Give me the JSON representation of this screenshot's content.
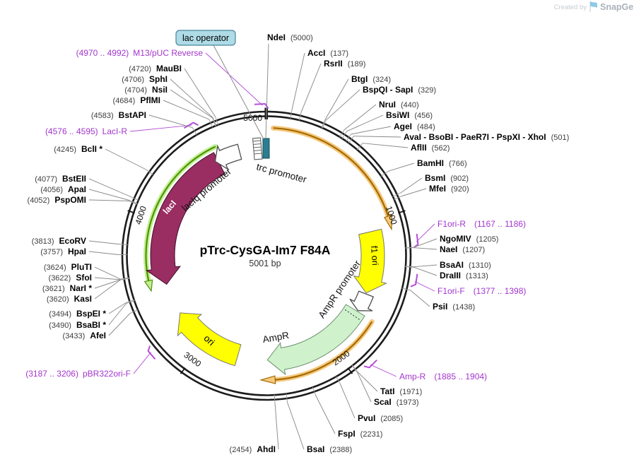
{
  "brand": {
    "created_by": "Created by",
    "name": "SnapGene"
  },
  "plasmid": {
    "title": "pTrc-CysGA-Im7 F84A",
    "size": "5001 bp"
  },
  "ticks": [
    "1000",
    "2000",
    "3000",
    "4000",
    "5000"
  ],
  "colors": {
    "primer_purple": "#a335cc",
    "callout_gray": "#8a8a8a",
    "lacI_maroon": "#9a2d62",
    "yellow": "#ffff00",
    "ampr_green": "#cff2cd",
    "orf_orange_glow": "#f6c97e",
    "orf_orange_core": "#a36a00",
    "orf_green_glow": "#c3ef92",
    "orf_green_core": "#4c9406",
    "operator_teal": "#2c7d90",
    "lac_operator_box": "#aedbe6"
  },
  "features": {
    "trc_promoter": "trc promoter",
    "lac_operator": "lac operator",
    "lacI": "lacI",
    "laciq_promoter": "lacIq promoter",
    "f1_ori": "f1 ori",
    "ampr_promoter": "AmpR promoter",
    "ampr": "AmpR",
    "ori": "ori"
  },
  "sites": [
    {
      "name": "NdeI",
      "pos": "(5000)"
    },
    {
      "name": "AccI",
      "pos": "(137)"
    },
    {
      "name": "RsrII",
      "pos": "(189)"
    },
    {
      "name": "BtgI",
      "pos": "(324)"
    },
    {
      "name": "BspQI - SapI",
      "pos": "(329)"
    },
    {
      "name": "NruI",
      "pos": "(440)"
    },
    {
      "name": "BsiWI",
      "pos": "(456)"
    },
    {
      "name": "AgeI",
      "pos": "(484)"
    },
    {
      "name": "AvaI - BsoBI - PaeR7I - PspXI - XhoI",
      "pos": "(501)"
    },
    {
      "name": "AflII",
      "pos": "(562)"
    },
    {
      "name": "BamHI",
      "pos": "(766)"
    },
    {
      "name": "BsmI",
      "pos": "(902)"
    },
    {
      "name": "MfeI",
      "pos": "(920)"
    },
    {
      "name": "F1ori-R",
      "pos": "(1167 .. 1186)",
      "primer": true
    },
    {
      "name": "NgoMIV",
      "pos": "(1205)"
    },
    {
      "name": "NaeI",
      "pos": "(1207)"
    },
    {
      "name": "BsaAI",
      "pos": "(1310)"
    },
    {
      "name": "DraIII",
      "pos": "(1313)"
    },
    {
      "name": "F1ori-F",
      "pos": "(1377 .. 1398)",
      "primer": true
    },
    {
      "name": "PsiI",
      "pos": "(1438)"
    },
    {
      "name": "Amp-R",
      "pos": "(1885 .. 1904)",
      "primer": true
    },
    {
      "name": "TatI",
      "pos": "(1971)"
    },
    {
      "name": "ScaI",
      "pos": "(1973)"
    },
    {
      "name": "PvuI",
      "pos": "(2085)"
    },
    {
      "name": "FspI",
      "pos": "(2231)"
    },
    {
      "name": "BsaI",
      "pos": "(2388)"
    },
    {
      "name": "AhdI",
      "pos": "(2454)"
    },
    {
      "name": "pBR322ori-F",
      "pos": "(3187 .. 3206)",
      "primer": true
    },
    {
      "name": "AfeI",
      "pos": "(3433)"
    },
    {
      "name": "BsaBI *",
      "pos": "(3490)"
    },
    {
      "name": "BspEI *",
      "pos": "(3494)"
    },
    {
      "name": "KasI",
      "pos": "(3620)"
    },
    {
      "name": "NarI *",
      "pos": "(3621)"
    },
    {
      "name": "SfoI",
      "pos": "(3622)"
    },
    {
      "name": "PluTI",
      "pos": "(3624)"
    },
    {
      "name": "HpaI",
      "pos": "(3757)"
    },
    {
      "name": "EcoRV",
      "pos": "(3813)"
    },
    {
      "name": "PspOMI",
      "pos": "(4052)"
    },
    {
      "name": "ApaI",
      "pos": "(4056)"
    },
    {
      "name": "BstEII",
      "pos": "(4077)"
    },
    {
      "name": "BclI *",
      "pos": "(4245)"
    },
    {
      "name": "LacI-R",
      "pos": "(4576 .. 4595)",
      "primer": true
    },
    {
      "name": "BstAPI",
      "pos": "(4583)"
    },
    {
      "name": "PflMI",
      "pos": "(4684)"
    },
    {
      "name": "NsiI",
      "pos": "(4704)"
    },
    {
      "name": "SphI",
      "pos": "(4706)"
    },
    {
      "name": "MauBI",
      "pos": "(4720)"
    },
    {
      "name": "M13/pUC Reverse",
      "pos": "(4970 .. 4992)",
      "primer": true
    }
  ]
}
